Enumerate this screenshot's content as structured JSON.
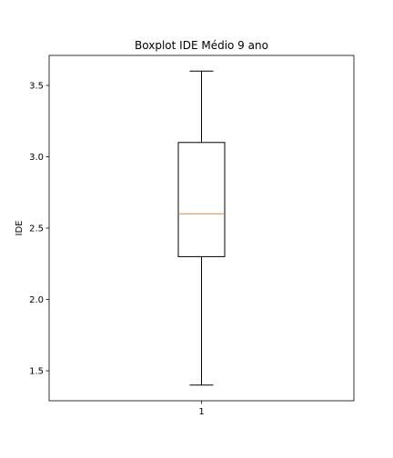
{
  "chart_data": {
    "type": "box",
    "title": "Boxplot IDE Médio 9 ano",
    "xlabel": "",
    "ylabel": "IDE",
    "categories": [
      "1"
    ],
    "boxes": [
      {
        "category": "1",
        "whisker_low": 1.4,
        "q1": 2.3,
        "median": 2.6,
        "q3": 3.1,
        "whisker_high": 3.6
      }
    ],
    "ylim": [
      1.29,
      3.71
    ],
    "y_ticks": [
      1.5,
      2.0,
      2.5,
      3.0,
      3.5
    ],
    "y_tick_labels": [
      "1.5",
      "2.0",
      "2.5",
      "3.0",
      "3.5"
    ],
    "grid": false,
    "colors": {
      "box": "#000000",
      "median": "#ff7f0e",
      "whisker": "#000000",
      "axes": "#000000"
    }
  }
}
